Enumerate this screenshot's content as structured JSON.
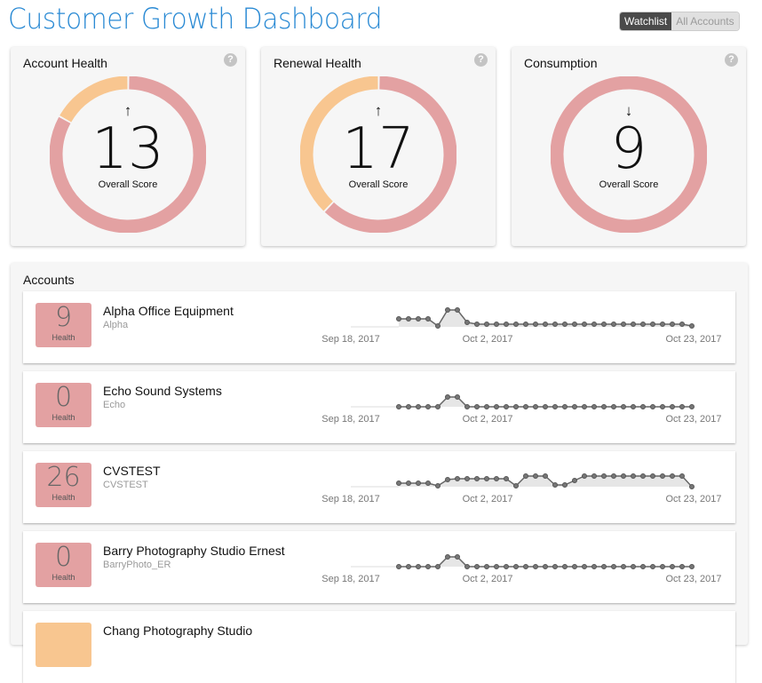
{
  "header": {
    "title": "Customer Growth Dashboard",
    "toggle": {
      "active": "Watchlist",
      "inactive": "All Accounts"
    }
  },
  "colors": {
    "red": "#e3a1a2",
    "orange": "#f8c690",
    "title": "#2a8ad4"
  },
  "gauges": [
    {
      "title": "Account Health",
      "score": "13",
      "trend": "↑",
      "label": "Overall Score",
      "orange_fraction": 0.17,
      "help": "?"
    },
    {
      "title": "Renewal Health",
      "score": "17",
      "trend": "↑",
      "label": "Overall Score",
      "orange_fraction": 0.38,
      "help": "?"
    },
    {
      "title": "Consumption",
      "score": "9",
      "trend": "↓",
      "label": "Overall Score",
      "orange_fraction": 0,
      "help": "?"
    }
  ],
  "accounts": {
    "title": "Accounts",
    "dates": [
      "Sep 18, 2017",
      "Oct 2, 2017",
      "Oct 23, 2017"
    ],
    "items": [
      {
        "name": "Alpha Office Equipment",
        "code": "Alpha",
        "health": "9",
        "health_label": "Health",
        "color": "#e3a1a2",
        "trend": [
          4.5,
          4.5,
          4.5,
          4.5,
          0.5,
          9.5,
          9.5,
          2.5,
          1.5,
          1.5,
          1.5,
          1.5,
          1.5,
          1.5,
          1.5,
          1.5,
          1.5,
          1.5,
          1.5,
          1.5,
          1.5,
          1.5,
          1.5,
          1.5,
          1.5,
          1.5,
          1.5,
          1.5,
          1.5,
          1.5,
          0.5
        ]
      },
      {
        "name": "Echo Sound Systems",
        "code": "Echo",
        "health": "0",
        "health_label": "Health",
        "color": "#e3a1a2",
        "trend": [
          0,
          0,
          0,
          0,
          0,
          5.5,
          5.5,
          0,
          0,
          0,
          0,
          0,
          0,
          0,
          0,
          0,
          0,
          0,
          0,
          0,
          0,
          0,
          0,
          0,
          0,
          0,
          0,
          0,
          0,
          0,
          0
        ]
      },
      {
        "name": "CVSTEST",
        "code": "CVSTEST",
        "health": "26",
        "health_label": "Health",
        "color": "#e3a1a2",
        "trend": [
          2,
          2,
          2,
          2,
          0.5,
          4,
          4.5,
          4.5,
          4.5,
          4.5,
          4.5,
          4.5,
          0.5,
          6,
          6,
          6,
          1,
          1,
          3.5,
          6,
          6,
          6,
          6,
          6,
          6,
          6,
          6,
          6,
          6,
          6,
          0
        ]
      },
      {
        "name": "Barry Photography Studio Ernest",
        "code": "BarryPhoto_ER",
        "health": "0",
        "health_label": "Health",
        "color": "#e3a1a2",
        "trend": [
          0,
          0,
          0,
          0,
          0,
          5.5,
          5.5,
          0,
          0,
          0,
          0,
          0,
          0,
          0,
          0,
          0,
          0,
          0,
          0,
          0,
          0,
          0,
          0,
          0,
          0,
          0,
          0,
          0,
          0,
          0,
          0
        ]
      },
      {
        "name": "Chang Photography Studio",
        "code": "",
        "health": "",
        "health_label": "",
        "color": "#f8c690",
        "trend": []
      }
    ]
  }
}
